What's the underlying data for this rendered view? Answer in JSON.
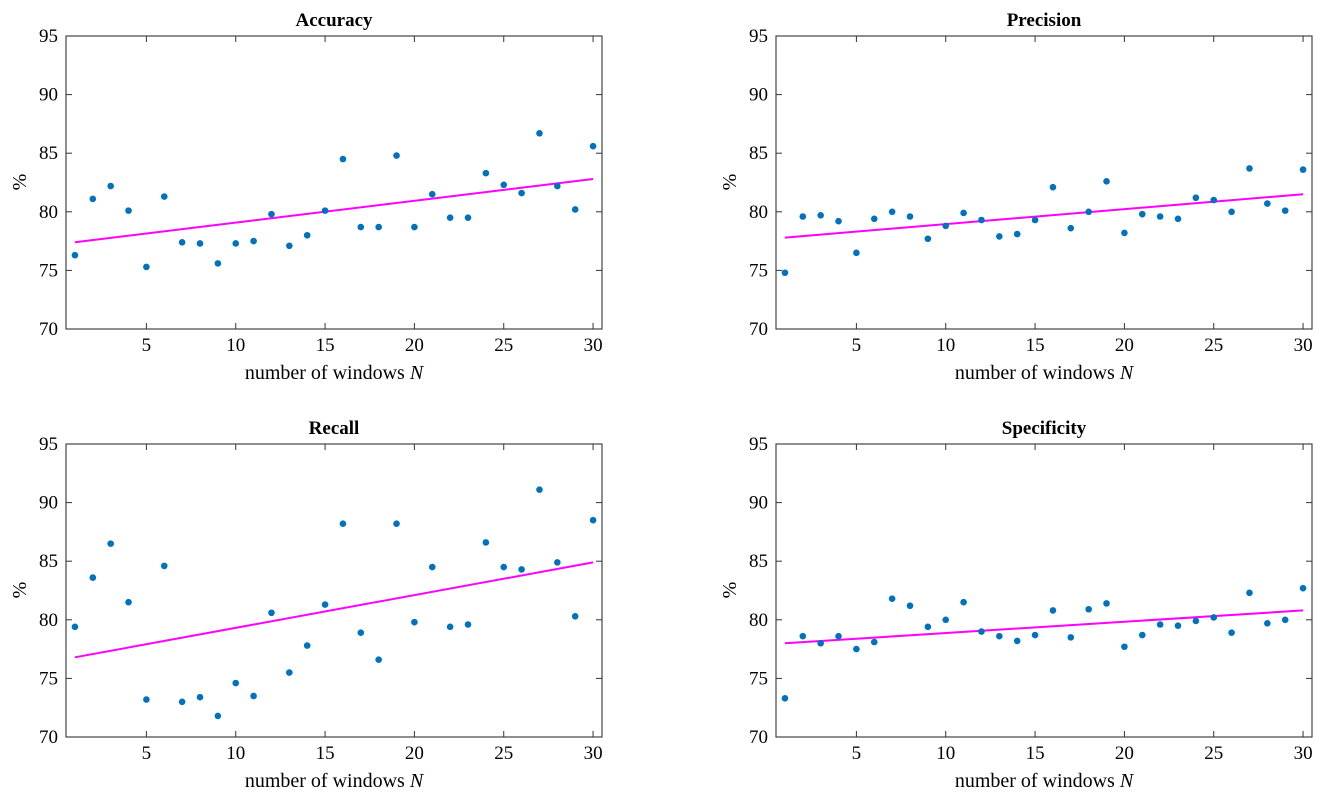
{
  "chart_data": [
    {
      "type": "scatter",
      "title": "Accuracy",
      "xlabel": "number of windows",
      "xlabel_var": "N",
      "ylabel": "%",
      "xlim": [
        0.5,
        30.5
      ],
      "ylim": [
        70,
        95
      ],
      "xticks": [
        5,
        10,
        15,
        20,
        25,
        30
      ],
      "yticks": [
        70,
        75,
        80,
        85,
        90,
        95
      ],
      "marker_color": "#0072BD",
      "fit_color": "#FF00FF",
      "x": [
        1,
        2,
        3,
        4,
        5,
        6,
        7,
        8,
        9,
        10,
        11,
        12,
        13,
        14,
        15,
        16,
        17,
        18,
        19,
        20,
        21,
        22,
        23,
        24,
        25,
        26,
        27,
        28,
        29,
        30
      ],
      "y": [
        76.3,
        81.1,
        82.2,
        80.1,
        75.3,
        81.3,
        77.4,
        77.3,
        75.6,
        77.3,
        77.5,
        79.8,
        77.1,
        78.0,
        80.1,
        84.5,
        78.7,
        78.7,
        84.8,
        78.7,
        81.5,
        79.5,
        79.5,
        83.3,
        82.3,
        81.6,
        86.7,
        82.2,
        80.2,
        85.6
      ],
      "fit": {
        "x": [
          1,
          30
        ],
        "y": [
          77.4,
          82.8
        ]
      }
    },
    {
      "type": "scatter",
      "title": "Precision",
      "xlabel": "number of windows",
      "xlabel_var": "N",
      "ylabel": "%",
      "xlim": [
        0.5,
        30.5
      ],
      "ylim": [
        70,
        95
      ],
      "xticks": [
        5,
        10,
        15,
        20,
        25,
        30
      ],
      "yticks": [
        70,
        75,
        80,
        85,
        90,
        95
      ],
      "marker_color": "#0072BD",
      "fit_color": "#FF00FF",
      "x": [
        1,
        2,
        3,
        4,
        5,
        6,
        7,
        8,
        9,
        10,
        11,
        12,
        13,
        14,
        15,
        16,
        17,
        18,
        19,
        20,
        21,
        22,
        23,
        24,
        25,
        26,
        27,
        28,
        29,
        30
      ],
      "y": [
        74.8,
        79.6,
        79.7,
        79.2,
        76.5,
        79.4,
        80.0,
        79.6,
        77.7,
        78.8,
        79.9,
        79.3,
        77.9,
        78.1,
        79.3,
        82.1,
        78.6,
        80.0,
        82.6,
        78.2,
        79.8,
        79.6,
        79.4,
        81.2,
        81.0,
        80.0,
        83.7,
        80.7,
        80.1,
        83.6
      ],
      "fit": {
        "x": [
          1,
          30
        ],
        "y": [
          77.8,
          81.5
        ]
      }
    },
    {
      "type": "scatter",
      "title": "Recall",
      "xlabel": "number of windows",
      "xlabel_var": "N",
      "ylabel": "%",
      "xlim": [
        0.5,
        30.5
      ],
      "ylim": [
        70,
        95
      ],
      "xticks": [
        5,
        10,
        15,
        20,
        25,
        30
      ],
      "yticks": [
        70,
        75,
        80,
        85,
        90,
        95
      ],
      "marker_color": "#0072BD",
      "fit_color": "#FF00FF",
      "x": [
        1,
        2,
        3,
        4,
        5,
        6,
        7,
        8,
        9,
        10,
        11,
        12,
        13,
        14,
        15,
        16,
        17,
        18,
        19,
        20,
        21,
        22,
        23,
        24,
        25,
        26,
        27,
        28,
        29,
        30
      ],
      "y": [
        79.4,
        83.6,
        86.5,
        81.5,
        73.2,
        84.6,
        73.0,
        73.4,
        71.8,
        74.6,
        73.5,
        80.6,
        75.5,
        77.8,
        81.3,
        88.2,
        78.9,
        76.6,
        88.2,
        79.8,
        84.5,
        79.4,
        79.6,
        86.6,
        84.5,
        84.3,
        91.1,
        84.9,
        80.3,
        88.5
      ],
      "fit": {
        "x": [
          1,
          30
        ],
        "y": [
          76.8,
          84.9
        ]
      }
    },
    {
      "type": "scatter",
      "title": "Specificity",
      "xlabel": "number of windows",
      "xlabel_var": "N",
      "ylabel": "%",
      "xlim": [
        0.5,
        30.5
      ],
      "ylim": [
        70,
        95
      ],
      "xticks": [
        5,
        10,
        15,
        20,
        25,
        30
      ],
      "yticks": [
        70,
        75,
        80,
        85,
        90,
        95
      ],
      "marker_color": "#0072BD",
      "fit_color": "#FF00FF",
      "x": [
        1,
        2,
        3,
        4,
        5,
        6,
        7,
        8,
        9,
        10,
        11,
        12,
        13,
        14,
        15,
        16,
        17,
        18,
        19,
        20,
        21,
        22,
        23,
        24,
        25,
        26,
        27,
        28,
        29,
        30
      ],
      "y": [
        73.3,
        78.6,
        78.0,
        78.6,
        77.5,
        78.1,
        81.8,
        81.2,
        79.4,
        80.0,
        81.5,
        79.0,
        78.6,
        78.2,
        78.7,
        80.8,
        78.5,
        80.9,
        81.4,
        77.7,
        78.7,
        79.6,
        79.5,
        79.9,
        80.2,
        78.9,
        82.3,
        79.7,
        80.0,
        82.7
      ],
      "fit": {
        "x": [
          1,
          30
        ],
        "y": [
          78.0,
          80.8
        ]
      }
    }
  ]
}
